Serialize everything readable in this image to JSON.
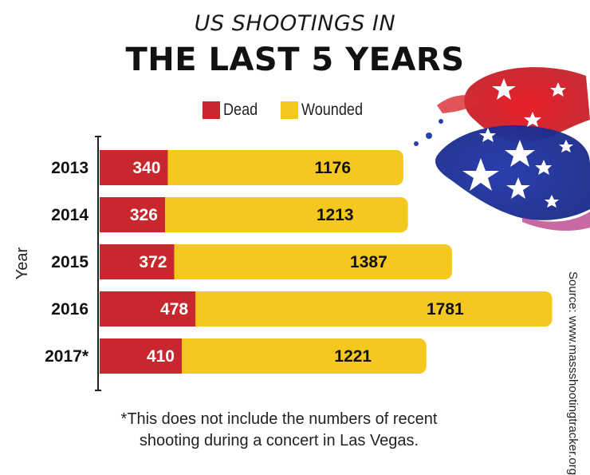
{
  "title_line1": "US SHOOTINGS IN",
  "title_line2": "THE LAST 5 YEARS",
  "legend": {
    "dead": "Dead",
    "wounded": "Wounded"
  },
  "colors": {
    "dead": "#c8282d",
    "wounded": "#f5c81f"
  },
  "footnote_line1": "*This does not include the numbers of recent",
  "footnote_line2": "shooting during a concert in Las Vegas.",
  "source": "Source: www.massshootingtracker.org",
  "chart_data": {
    "type": "bar",
    "orientation": "horizontal",
    "stacked": true,
    "ylabel": "Year",
    "categories": [
      "2013",
      "2014",
      "2015",
      "2016",
      "2017*"
    ],
    "series": [
      {
        "name": "Dead",
        "values": [
          340,
          326,
          372,
          478,
          410
        ]
      },
      {
        "name": "Wounded",
        "values": [
          1176,
          1213,
          1387,
          1781,
          1221
        ]
      }
    ],
    "legend_position": "top",
    "grid": false
  }
}
